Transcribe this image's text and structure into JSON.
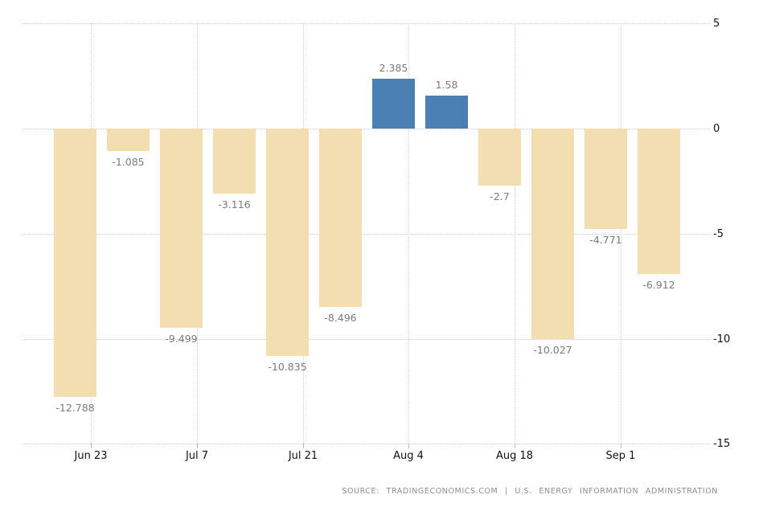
{
  "chart_data": {
    "type": "bar",
    "title": "",
    "xlabel": "",
    "ylabel": "",
    "values": [
      -12.788,
      -1.085,
      -9.499,
      -3.116,
      -10.835,
      -8.496,
      2.385,
      1.58,
      -2.7,
      -10.027,
      -4.771,
      -6.912
    ],
    "bar_value_labels": [
      "-12.788",
      "-1.085",
      "-9.499",
      "-3.116",
      "-10.835",
      "-8.496",
      "2.385",
      "1.58",
      "-2.7",
      "-10.027",
      "-4.771",
      "-6.912"
    ],
    "x_tick_labels": [
      "Jun 23",
      "Jul 7",
      "Jul 21",
      "Aug 4",
      "Aug 18",
      "Sep 1"
    ],
    "y_ticks": [
      5,
      0,
      -5,
      -10,
      -15
    ],
    "y_tick_labels": [
      "5",
      "0",
      "-5",
      "-10",
      "-15"
    ],
    "ylim": [
      -15,
      5
    ],
    "grid": "dotted",
    "legend": "none",
    "colors": {
      "positive_bar": "#4a80b2",
      "negative_bar": "#f3deb1",
      "grid": "#cccccc",
      "value_label": "#7a7a7a",
      "axis_label": "#111111",
      "source_text": "#8e8e8e",
      "background": "#ffffff"
    }
  },
  "footer": {
    "source_text": "SOURCE: TRADINGECONOMICS.COM | U.S. ENERGY INFORMATION ADMINISTRATION"
  }
}
